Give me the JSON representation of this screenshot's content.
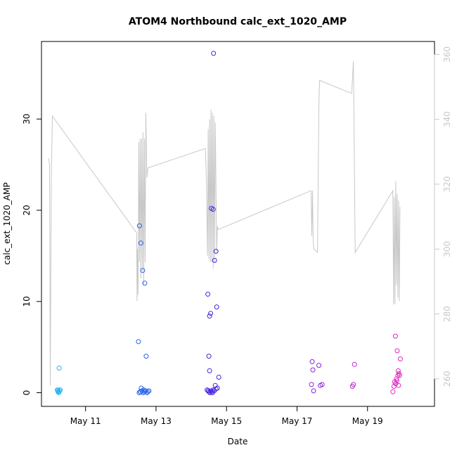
{
  "chart_data": {
    "type": "scatter",
    "title": "ATOM4 Northbound calc_ext_1020_AMP",
    "xlabel": "Date",
    "ylabel": "calc_ext_1020_AMP",
    "xlim": [
      9.75,
      20.9
    ],
    "ylim": [
      -1.5,
      38.5
    ],
    "y2lim": [
      251.5,
      364
    ],
    "x_ticks": [
      {
        "value": 11,
        "label": "May 11"
      },
      {
        "value": 13,
        "label": "May 13"
      },
      {
        "value": 15,
        "label": "May 15"
      },
      {
        "value": 17,
        "label": "May 17"
      },
      {
        "value": 19,
        "label": "May 19"
      }
    ],
    "y_ticks": [
      0,
      10,
      20,
      30
    ],
    "y2_ticks": [
      260,
      280,
      300,
      320,
      340,
      360
    ],
    "x_unit": "day of May",
    "points_series": [
      {
        "color": "#27b4ee",
        "points": [
          [
            10.2,
            0.3
          ],
          [
            10.22,
            0.1
          ],
          [
            10.24,
            0.0
          ],
          [
            10.25,
            2.7
          ],
          [
            10.26,
            0.2
          ],
          [
            10.28,
            0.3
          ],
          [
            10.23,
            0.15
          ],
          [
            10.21,
            0.25
          ]
        ]
      },
      {
        "color": "#2b63e8",
        "points": [
          [
            12.5,
            5.6
          ],
          [
            12.53,
            18.3
          ],
          [
            12.57,
            16.4
          ],
          [
            12.62,
            13.4
          ],
          [
            12.68,
            12.0
          ],
          [
            12.72,
            4.0
          ],
          [
            12.55,
            0.1
          ],
          [
            12.58,
            0.5
          ],
          [
            12.6,
            0.2
          ],
          [
            12.63,
            0.0
          ],
          [
            12.65,
            0.3
          ],
          [
            12.67,
            0.1
          ],
          [
            12.7,
            0.2
          ],
          [
            12.74,
            0.0
          ],
          [
            12.77,
            0.1
          ],
          [
            12.8,
            0.2
          ],
          [
            12.52,
            0.0
          ],
          [
            12.56,
            0.1
          ]
        ]
      },
      {
        "color": "#4a24e0",
        "points": [
          [
            14.47,
            10.8
          ],
          [
            14.52,
            8.4
          ],
          [
            14.55,
            8.7
          ],
          [
            14.5,
            4.0
          ],
          [
            14.52,
            2.4
          ],
          [
            14.57,
            20.2
          ],
          [
            14.62,
            20.1
          ],
          [
            14.63,
            37.2
          ],
          [
            14.66,
            14.5
          ],
          [
            14.7,
            15.5
          ],
          [
            14.72,
            9.4
          ],
          [
            14.78,
            1.7
          ],
          [
            14.68,
            0.8
          ],
          [
            14.45,
            0.3
          ],
          [
            14.48,
            0.2
          ],
          [
            14.5,
            0.1
          ],
          [
            14.53,
            0.0
          ],
          [
            14.55,
            0.2
          ],
          [
            14.58,
            0.1
          ],
          [
            14.6,
            0.0
          ],
          [
            14.62,
            0.3
          ],
          [
            14.65,
            0.2
          ],
          [
            14.7,
            0.4
          ],
          [
            14.74,
            0.5
          ]
        ]
      },
      {
        "color": "#8a24d6",
        "points": [
          [
            17.43,
            3.4
          ],
          [
            17.45,
            2.5
          ],
          [
            17.41,
            0.9
          ],
          [
            17.47,
            0.2
          ],
          [
            17.62,
            3.0
          ],
          [
            17.66,
            0.8
          ],
          [
            17.71,
            0.9
          ]
        ]
      },
      {
        "color": "#b82acb",
        "points": [
          [
            18.57,
            0.7
          ],
          [
            18.6,
            0.9
          ],
          [
            18.63,
            3.1
          ]
        ]
      },
      {
        "color": "#e028c0",
        "points": [
          [
            19.72,
            0.1
          ],
          [
            19.77,
            1.2
          ],
          [
            19.79,
            6.2
          ],
          [
            19.82,
            1.5
          ],
          [
            19.84,
            4.6
          ],
          [
            19.86,
            1.9
          ],
          [
            19.87,
            2.4
          ],
          [
            19.88,
            0.8
          ],
          [
            19.89,
            2.1
          ],
          [
            19.91,
            1.9
          ],
          [
            19.83,
            1.3
          ],
          [
            19.93,
            3.7
          ],
          [
            19.8,
            1.0
          ],
          [
            19.75,
            0.7
          ]
        ]
      }
    ],
    "line_series": {
      "color": "#c8c8c8",
      "axis": "right",
      "points": [
        [
          9.95,
          328
        ],
        [
          9.98,
          326
        ],
        [
          10.0,
          258
        ],
        [
          10.03,
          322
        ],
        [
          10.06,
          341
        ],
        [
          12.45,
          305
        ],
        [
          12.46,
          284
        ],
        [
          12.47,
          300
        ],
        [
          12.49,
          286
        ],
        [
          12.51,
          333
        ],
        [
          12.53,
          296
        ],
        [
          12.55,
          334
        ],
        [
          12.57,
          291
        ],
        [
          12.59,
          334
        ],
        [
          12.61,
          293
        ],
        [
          12.63,
          336
        ],
        [
          12.65,
          289
        ],
        [
          12.67,
          334
        ],
        [
          12.69,
          296
        ],
        [
          12.71,
          342
        ],
        [
          12.74,
          322
        ],
        [
          12.77,
          325
        ],
        [
          14.4,
          331
        ],
        [
          14.43,
          321
        ],
        [
          14.46,
          298
        ],
        [
          14.48,
          337
        ],
        [
          14.5,
          297
        ],
        [
          14.52,
          340
        ],
        [
          14.54,
          296
        ],
        [
          14.56,
          343
        ],
        [
          14.58,
          296
        ],
        [
          14.6,
          342
        ],
        [
          14.62,
          294
        ],
        [
          14.64,
          341
        ],
        [
          14.66,
          296
        ],
        [
          14.68,
          339
        ],
        [
          14.72,
          299
        ],
        [
          14.74,
          307
        ],
        [
          14.76,
          306
        ],
        [
          17.4,
          318
        ],
        [
          17.42,
          304
        ],
        [
          17.44,
          318
        ],
        [
          17.46,
          302
        ],
        [
          17.48,
          300
        ],
        [
          17.58,
          299
        ],
        [
          17.62,
          345
        ],
        [
          17.64,
          352
        ],
        [
          18.55,
          348
        ],
        [
          18.6,
          358
        ],
        [
          18.65,
          299
        ],
        [
          19.72,
          318
        ],
        [
          19.74,
          283
        ],
        [
          19.76,
          316
        ],
        [
          19.78,
          283
        ],
        [
          19.8,
          321
        ],
        [
          19.82,
          289
        ],
        [
          19.84,
          317
        ],
        [
          19.86,
          285
        ],
        [
          19.88,
          315
        ],
        [
          19.9,
          284
        ],
        [
          19.92,
          313
        ]
      ]
    }
  }
}
